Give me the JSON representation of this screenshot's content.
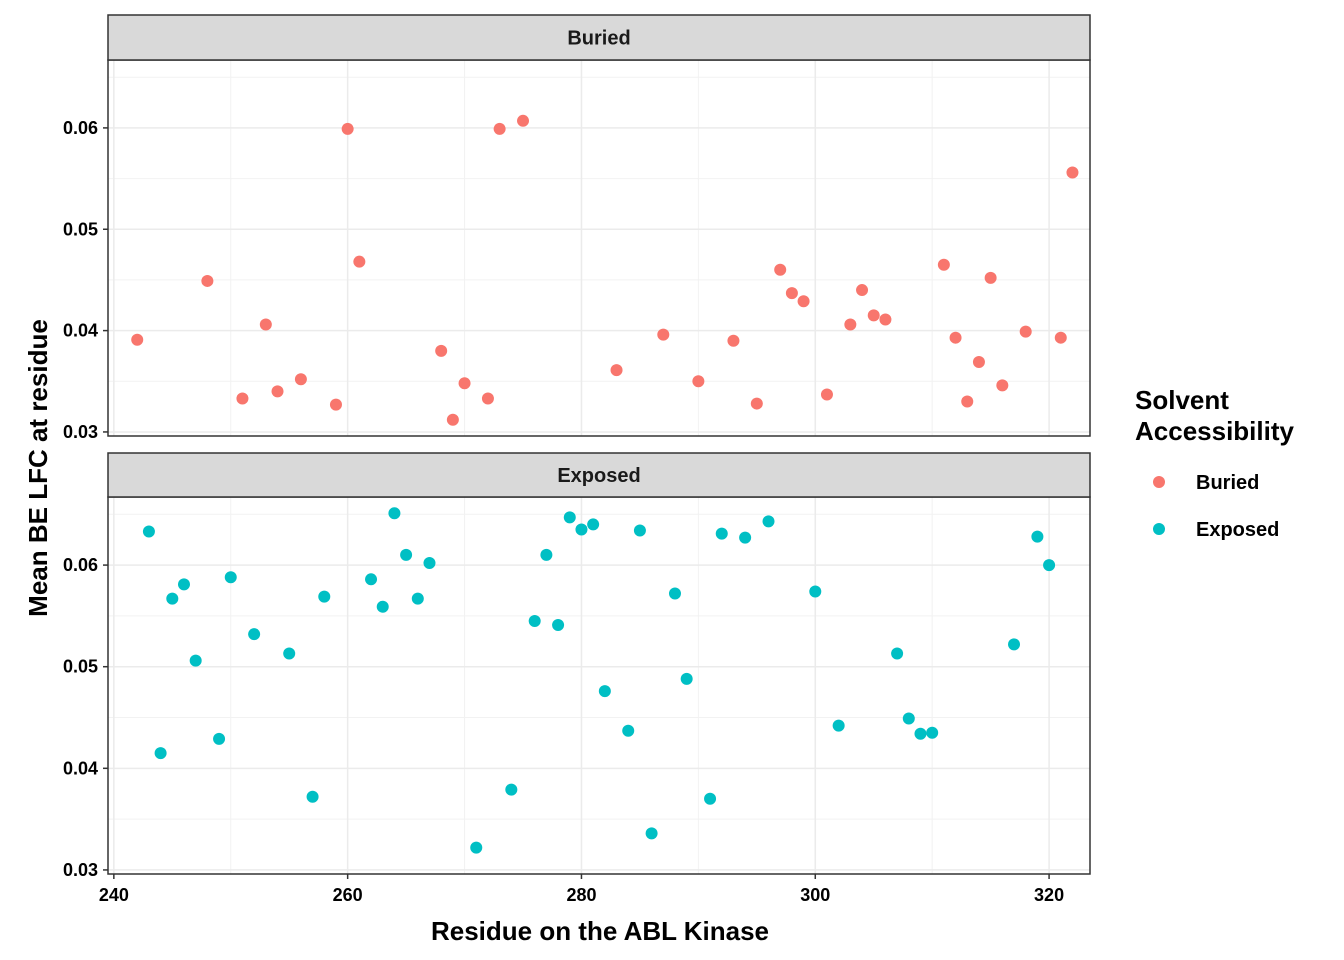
{
  "chart_data": {
    "type": "scatter",
    "facets": [
      "Buried",
      "Exposed"
    ],
    "xlabel": "Residue on the ABL Kinase",
    "ylabel": "Mean BE LFC at residue",
    "xlim": [
      239.5,
      323.5
    ],
    "ylim": [
      0.0296,
      0.0667
    ],
    "x_ticks": [
      240,
      260,
      280,
      300,
      320
    ],
    "y_ticks": [
      0.03,
      0.04,
      0.05,
      0.06
    ],
    "grid": true,
    "legend": {
      "title_line1": "Solvent",
      "title_line2": "Accessibility",
      "placement": "right",
      "entries": [
        "Buried",
        "Exposed"
      ]
    },
    "colors": {
      "Buried": "#F8766D",
      "Exposed": "#00BFC4"
    },
    "series": [
      {
        "name": "Buried",
        "points": [
          [
            242,
            0.0391
          ],
          [
            248,
            0.0449
          ],
          [
            251,
            0.0333
          ],
          [
            253,
            0.0406
          ],
          [
            254,
            0.034
          ],
          [
            256,
            0.0352
          ],
          [
            259,
            0.0327
          ],
          [
            260,
            0.0599
          ],
          [
            261,
            0.0468
          ],
          [
            268,
            0.038
          ],
          [
            269,
            0.0312
          ],
          [
            270,
            0.0348
          ],
          [
            272,
            0.0333
          ],
          [
            273,
            0.0599
          ],
          [
            275,
            0.0607
          ],
          [
            283,
            0.0361
          ],
          [
            287,
            0.0396
          ],
          [
            290,
            0.035
          ],
          [
            293,
            0.039
          ],
          [
            295,
            0.0328
          ],
          [
            297,
            0.046
          ],
          [
            298,
            0.0437
          ],
          [
            299,
            0.0429
          ],
          [
            301,
            0.0337
          ],
          [
            303,
            0.0406
          ],
          [
            304,
            0.044
          ],
          [
            305,
            0.0415
          ],
          [
            306,
            0.0411
          ],
          [
            311,
            0.0465
          ],
          [
            312,
            0.0393
          ],
          [
            313,
            0.033
          ],
          [
            314,
            0.0369
          ],
          [
            315,
            0.0452
          ],
          [
            316,
            0.0346
          ],
          [
            318,
            0.0399
          ],
          [
            321,
            0.0393
          ],
          [
            322,
            0.0556
          ]
        ]
      },
      {
        "name": "Exposed",
        "points": [
          [
            243,
            0.0633
          ],
          [
            244,
            0.0415
          ],
          [
            245,
            0.0567
          ],
          [
            246,
            0.0581
          ],
          [
            247,
            0.0506
          ],
          [
            249,
            0.0429
          ],
          [
            250,
            0.0588
          ],
          [
            252,
            0.0532
          ],
          [
            255,
            0.0513
          ],
          [
            257,
            0.0372
          ],
          [
            258,
            0.0569
          ],
          [
            262,
            0.0586
          ],
          [
            263,
            0.0559
          ],
          [
            264,
            0.0651
          ],
          [
            265,
            0.061
          ],
          [
            266,
            0.0567
          ],
          [
            267,
            0.0602
          ],
          [
            271,
            0.0322
          ],
          [
            274,
            0.0379
          ],
          [
            276,
            0.0545
          ],
          [
            277,
            0.061
          ],
          [
            278,
            0.0541
          ],
          [
            279,
            0.0647
          ],
          [
            280,
            0.0635
          ],
          [
            281,
            0.064
          ],
          [
            282,
            0.0476
          ],
          [
            284,
            0.0437
          ],
          [
            285,
            0.0634
          ],
          [
            286,
            0.0336
          ],
          [
            288,
            0.0572
          ],
          [
            289,
            0.0488
          ],
          [
            291,
            0.037
          ],
          [
            292,
            0.0631
          ],
          [
            294,
            0.0627
          ],
          [
            296,
            0.0643
          ],
          [
            300,
            0.0574
          ],
          [
            302,
            0.0442
          ],
          [
            307,
            0.0513
          ],
          [
            308,
            0.0449
          ],
          [
            309,
            0.0434
          ],
          [
            310,
            0.0435
          ],
          [
            317,
            0.0522
          ],
          [
            319,
            0.0628
          ],
          [
            320,
            0.06
          ]
        ]
      }
    ]
  }
}
